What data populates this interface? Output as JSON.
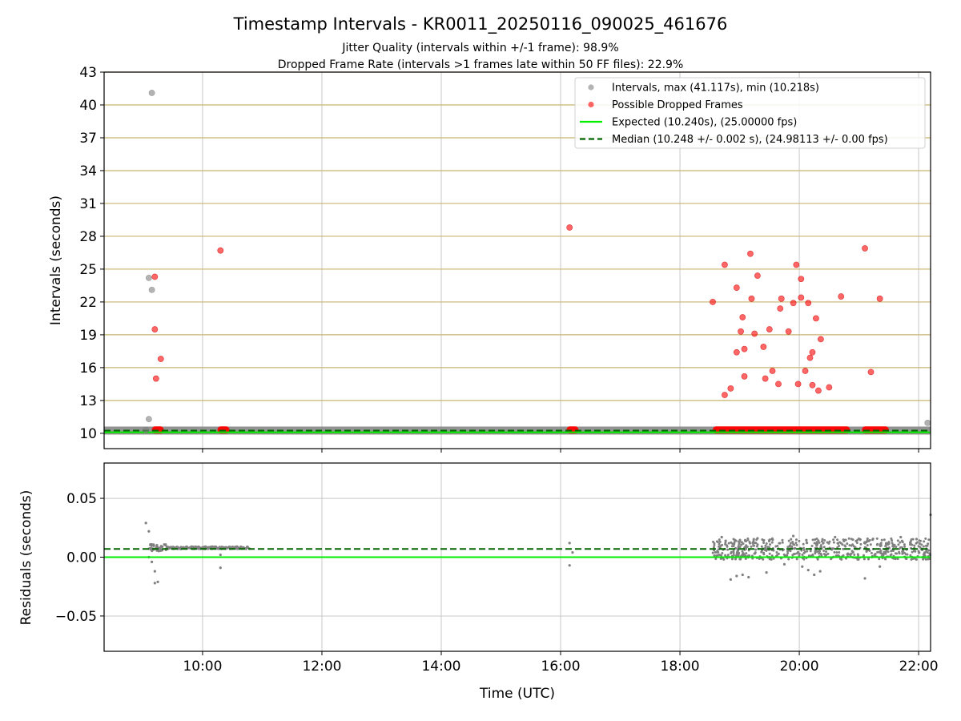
{
  "chart_data": {
    "type": "scatter",
    "title": "Timestamp Intervals - KR0011_20250116_090025_461676",
    "subtitle_lines": [
      "Jitter Quality (intervals within +/-1 frame): 98.9%",
      "Dropped Frame Rate (intervals >1 frames late within 50 FF files): 22.9%"
    ],
    "xlabel": "Time (UTC)",
    "x_ticks": [
      "10:00",
      "12:00",
      "14:00",
      "16:00",
      "18:00",
      "20:00",
      "22:00"
    ],
    "xlim_hours": [
      8.35,
      22.2
    ],
    "colors": {
      "intervals": "#808080",
      "dropped": "#ff0000",
      "expected": "#00ee00",
      "median": "#006400",
      "hgrid_top": "#c8b46e",
      "vgrid": "#c8c8c8"
    },
    "top_panel": {
      "ylabel": "Intervals (seconds)",
      "ylim": [
        8.6,
        43
      ],
      "y_ticks": [
        10,
        13,
        16,
        19,
        22,
        25,
        28,
        31,
        34,
        37,
        40,
        43
      ],
      "grid": "horizontal-ticks",
      "legend": {
        "placement": "top-right",
        "entries": [
          {
            "label": "Intervals, max (41.117s), min (10.218s)",
            "marker": "dot-gray"
          },
          {
            "label": "Possible Dropped Frames",
            "marker": "dot-red"
          },
          {
            "label": "Expected (10.240s), (25.00000 fps)",
            "marker": "line-green"
          },
          {
            "label": "Median (10.248 +/- 0.002 s), (24.98113 +/- 0.00 fps)",
            "marker": "dash-darkgreen"
          }
        ]
      },
      "expected_value": 10.24,
      "median_value": 10.248,
      "baseline_band": {
        "from_hour": 8.35,
        "to_hour": 22.2,
        "value": 10.25
      },
      "interval_points": [
        [
          9.15,
          41.1
        ],
        [
          9.1,
          24.2
        ],
        [
          9.15,
          23.1
        ],
        [
          9.1,
          11.3
        ],
        [
          9.05,
          10.3
        ],
        [
          22.15,
          10.95
        ]
      ],
      "dropped_points": [
        [
          9.2,
          24.3
        ],
        [
          9.2,
          19.5
        ],
        [
          9.3,
          16.8
        ],
        [
          9.22,
          15.0
        ],
        [
          10.3,
          26.7
        ],
        [
          16.15,
          28.8
        ],
        [
          18.55,
          22.0
        ],
        [
          18.75,
          25.4
        ],
        [
          18.75,
          13.5
        ],
        [
          18.85,
          14.1
        ],
        [
          18.95,
          23.3
        ],
        [
          18.95,
          17.4
        ],
        [
          19.02,
          19.3
        ],
        [
          19.05,
          20.6
        ],
        [
          19.08,
          17.7
        ],
        [
          19.08,
          15.2
        ],
        [
          19.18,
          26.4
        ],
        [
          19.2,
          22.3
        ],
        [
          19.25,
          19.1
        ],
        [
          19.3,
          24.4
        ],
        [
          19.4,
          17.9
        ],
        [
          19.43,
          15.0
        ],
        [
          19.5,
          19.5
        ],
        [
          19.55,
          15.7
        ],
        [
          19.65,
          14.5
        ],
        [
          19.68,
          21.4
        ],
        [
          19.7,
          22.3
        ],
        [
          19.82,
          19.3
        ],
        [
          19.9,
          21.9
        ],
        [
          19.95,
          25.4
        ],
        [
          19.98,
          14.5
        ],
        [
          20.03,
          22.4
        ],
        [
          20.03,
          24.1
        ],
        [
          20.1,
          15.7
        ],
        [
          20.15,
          21.9
        ],
        [
          20.18,
          16.9
        ],
        [
          20.22,
          14.4
        ],
        [
          20.22,
          17.4
        ],
        [
          20.28,
          20.5
        ],
        [
          20.32,
          13.9
        ],
        [
          20.36,
          18.6
        ],
        [
          20.5,
          14.2
        ],
        [
          20.7,
          22.5
        ],
        [
          21.1,
          26.9
        ],
        [
          21.2,
          15.6
        ],
        [
          21.35,
          22.3
        ]
      ],
      "dropped_bands": [
        {
          "from_hour": 9.15,
          "to_hour": 9.35,
          "value": 10.3
        },
        {
          "from_hour": 10.25,
          "to_hour": 10.45,
          "value": 10.3
        },
        {
          "from_hour": 16.1,
          "to_hour": 16.3,
          "value": 10.3
        },
        {
          "from_hour": 18.55,
          "to_hour": 20.85,
          "value": 10.3
        },
        {
          "from_hour": 21.05,
          "to_hour": 21.5,
          "value": 10.3
        }
      ]
    },
    "bottom_panel": {
      "ylabel": "Residuals (seconds)",
      "ylim": [
        -0.08,
        0.08
      ],
      "y_ticks": [
        -0.05,
        0.0,
        0.05
      ],
      "y_tick_labels": [
        "−0.05",
        "0.00",
        "0.05"
      ],
      "grid": "both",
      "expected_value": 0.0,
      "median_value": 0.007,
      "residual_points": [
        [
          9.05,
          0.029
        ],
        [
          9.1,
          0.022
        ],
        [
          9.2,
          -0.022
        ],
        [
          9.25,
          -0.021
        ],
        [
          9.2,
          -0.012
        ],
        [
          9.15,
          -0.004
        ],
        [
          9.1,
          0.0
        ],
        [
          10.3,
          -0.009
        ],
        [
          10.3,
          0.002
        ],
        [
          16.15,
          -0.007
        ],
        [
          16.15,
          0.012
        ],
        [
          16.2,
          0.004
        ],
        [
          18.85,
          -0.019
        ],
        [
          18.95,
          -0.016
        ],
        [
          19.05,
          -0.015
        ],
        [
          19.15,
          -0.017
        ],
        [
          19.45,
          -0.013
        ],
        [
          19.75,
          -0.006
        ],
        [
          20.05,
          -0.008
        ],
        [
          20.15,
          -0.011
        ],
        [
          20.25,
          -0.015
        ],
        [
          20.35,
          -0.012
        ],
        [
          21.1,
          -0.018
        ],
        [
          21.35,
          -0.008
        ],
        [
          22.2,
          0.036
        ],
        [
          18.7,
          0.017
        ],
        [
          19.3,
          0.016
        ],
        [
          19.9,
          0.018
        ],
        [
          20.6,
          0.017
        ],
        [
          21.7,
          0.017
        ]
      ],
      "residual_bands": [
        {
          "from_hour": 9.1,
          "to_hour": 9.4,
          "center": 0.008,
          "spread": 0.003
        },
        {
          "from_hour": 9.4,
          "to_hour": 10.8,
          "center": 0.008,
          "spread": 0.001
        },
        {
          "from_hour": 18.55,
          "to_hour": 22.2,
          "center": 0.007,
          "spread": 0.009
        }
      ]
    }
  }
}
